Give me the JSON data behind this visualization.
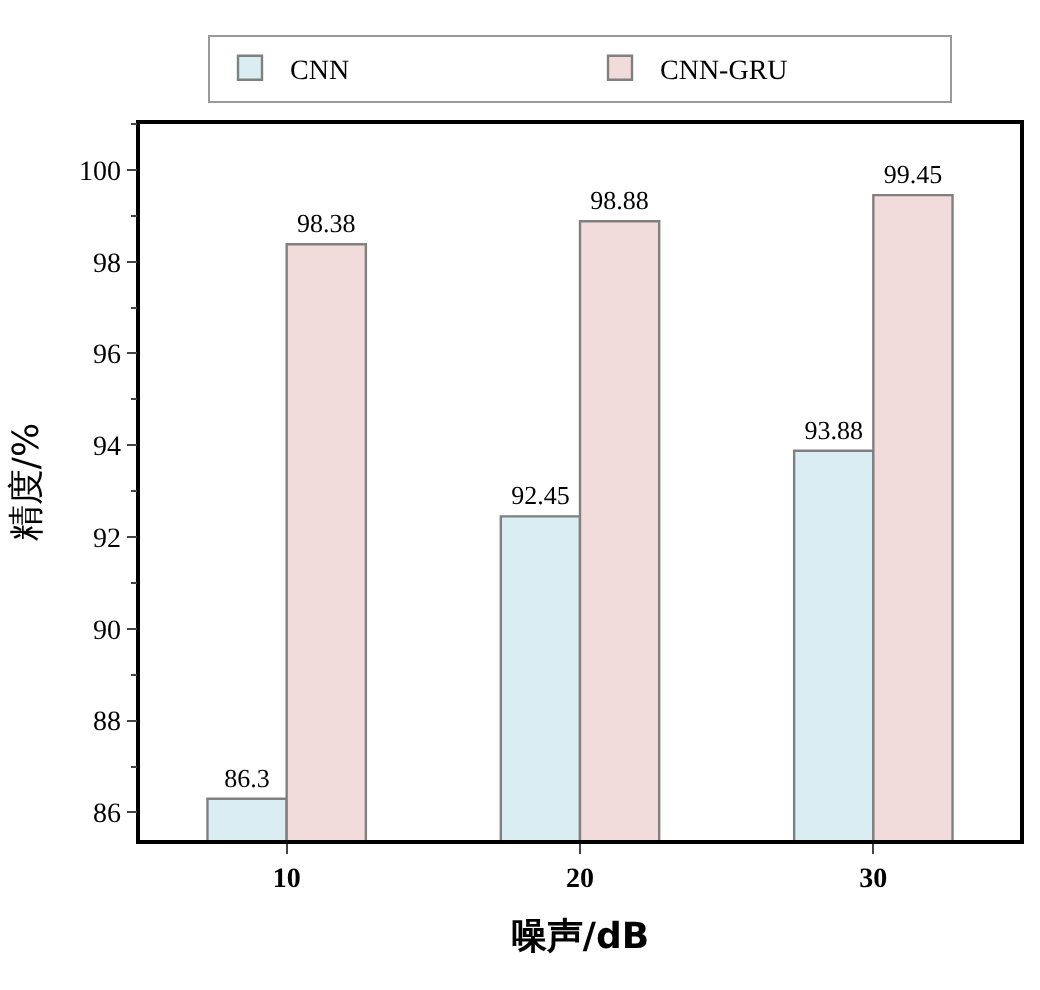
{
  "chart_data": {
    "type": "bar",
    "xlabel": "噪声/dB",
    "ylabel": "精度/%",
    "categories": [
      "10",
      "20",
      "30"
    ],
    "series": [
      {
        "name": "CNN",
        "color": "#d9edf2",
        "values": [
          86.3,
          92.45,
          93.88
        ]
      },
      {
        "name": "CNN-GRU",
        "color": "#f2dcdb",
        "values": [
          98.38,
          98.88,
          99.45
        ]
      }
    ],
    "ylim": [
      85.4,
      101
    ],
    "yticks": [
      86,
      88,
      90,
      92,
      94,
      96,
      98,
      100
    ],
    "data_labels": true,
    "legend": "top"
  }
}
